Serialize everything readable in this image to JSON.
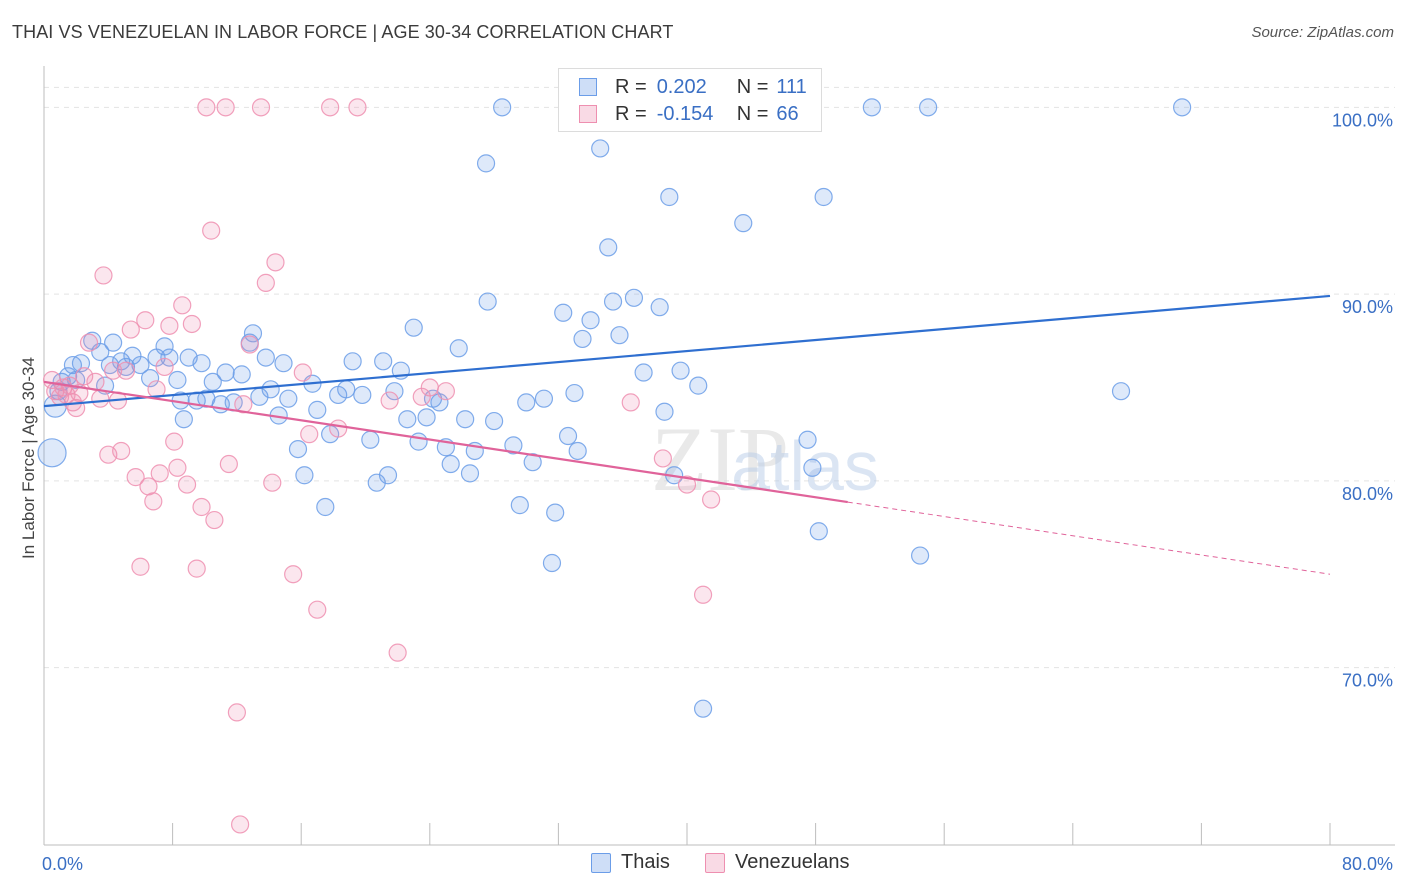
{
  "title": "THAI VS VENEZUELAN IN LABOR FORCE | AGE 30-34 CORRELATION CHART",
  "source": "Source: ZipAtlas.com",
  "legend": {
    "r_label": "R =",
    "n_label": "N =",
    "rows": [
      {
        "r": "0.202",
        "n": "111",
        "color": "#6b9de8"
      },
      {
        "r": "-0.154",
        "n": "66",
        "color": "#ee8fb0"
      }
    ]
  },
  "bottom_legend": [
    {
      "label": "Thais",
      "color": "#6b9de8"
    },
    {
      "label": "Venezuelans",
      "color": "#ee8fb0"
    }
  ],
  "chart_data": {
    "type": "scatter",
    "title": "THAI VS VENEZUELAN IN LABOR FORCE | AGE 30-34 CORRELATION CHART",
    "xlabel": "",
    "ylabel": "In Labor Force | Age 30-34",
    "xlim": [
      0,
      80
    ],
    "ylim": [
      60.5,
      102
    ],
    "x_tick_labels": [
      "0.0%",
      "80.0%"
    ],
    "y_ticks": [
      70,
      80,
      90,
      100
    ],
    "y_tick_labels": [
      "70.0%",
      "80.0%",
      "90.0%",
      "100.0%"
    ],
    "watermark": "ZIPatlas",
    "series": [
      {
        "name": "Thais",
        "color": "#6b9de8",
        "trend": {
          "x0": 0,
          "y0": 84.0,
          "x1": 80,
          "y1": 89.9,
          "dashed_from": null
        },
        "points": [
          [
            0.5,
            81.5
          ],
          [
            0.7,
            84.0
          ],
          [
            0.9,
            84.8
          ],
          [
            1.1,
            85.3
          ],
          [
            1.5,
            85.6
          ],
          [
            1.8,
            86.2
          ],
          [
            2.0,
            85.4
          ],
          [
            2.3,
            86.3
          ],
          [
            3.0,
            87.5
          ],
          [
            3.5,
            86.9
          ],
          [
            3.8,
            85.1
          ],
          [
            4.1,
            86.2
          ],
          [
            4.3,
            87.4
          ],
          [
            4.8,
            86.4
          ],
          [
            5.1,
            86.1
          ],
          [
            5.5,
            86.7
          ],
          [
            6.0,
            86.2
          ],
          [
            6.6,
            85.5
          ],
          [
            7.0,
            86.6
          ],
          [
            7.5,
            87.2
          ],
          [
            7.8,
            86.6
          ],
          [
            8.3,
            85.4
          ],
          [
            8.5,
            84.3
          ],
          [
            8.7,
            83.3
          ],
          [
            9.0,
            86.6
          ],
          [
            9.5,
            84.3
          ],
          [
            9.8,
            86.3
          ],
          [
            10.1,
            84.4
          ],
          [
            10.5,
            85.3
          ],
          [
            11.0,
            84.1
          ],
          [
            11.3,
            85.8
          ],
          [
            11.8,
            84.2
          ],
          [
            12.3,
            85.7
          ],
          [
            12.8,
            87.4
          ],
          [
            13.0,
            87.9
          ],
          [
            13.4,
            84.5
          ],
          [
            13.8,
            86.6
          ],
          [
            14.1,
            84.9
          ],
          [
            14.6,
            83.5
          ],
          [
            14.9,
            86.3
          ],
          [
            15.2,
            84.4
          ],
          [
            15.8,
            81.7
          ],
          [
            16.2,
            80.3
          ],
          [
            16.7,
            85.2
          ],
          [
            17.0,
            83.8
          ],
          [
            17.5,
            78.6
          ],
          [
            17.8,
            82.5
          ],
          [
            18.3,
            84.6
          ],
          [
            18.8,
            84.9
          ],
          [
            19.2,
            86.4
          ],
          [
            19.8,
            84.6
          ],
          [
            20.3,
            82.2
          ],
          [
            20.7,
            79.9
          ],
          [
            21.1,
            86.4
          ],
          [
            21.4,
            80.3
          ],
          [
            21.8,
            84.8
          ],
          [
            22.2,
            85.9
          ],
          [
            22.6,
            83.3
          ],
          [
            23.0,
            88.2
          ],
          [
            23.3,
            82.1
          ],
          [
            23.8,
            83.4
          ],
          [
            24.2,
            84.4
          ],
          [
            24.6,
            84.2
          ],
          [
            25.0,
            81.8
          ],
          [
            25.3,
            80.9
          ],
          [
            25.8,
            87.1
          ],
          [
            26.2,
            83.3
          ],
          [
            26.5,
            80.4
          ],
          [
            26.8,
            81.6
          ],
          [
            27.6,
            89.6
          ],
          [
            28.0,
            83.2
          ],
          [
            28.5,
            100.0
          ],
          [
            27.5,
            97.0
          ],
          [
            29.2,
            81.9
          ],
          [
            29.6,
            78.7
          ],
          [
            30.0,
            84.2
          ],
          [
            30.4,
            81.0
          ],
          [
            31.1,
            84.4
          ],
          [
            31.6,
            75.6
          ],
          [
            31.8,
            78.3
          ],
          [
            32.3,
            89.0
          ],
          [
            32.6,
            82.4
          ],
          [
            33.0,
            84.7
          ],
          [
            33.2,
            81.6
          ],
          [
            33.5,
            87.6
          ],
          [
            34.0,
            88.6
          ],
          [
            34.6,
            97.8
          ],
          [
            35.1,
            92.5
          ],
          [
            35.4,
            89.6
          ],
          [
            35.8,
            87.8
          ],
          [
            36.7,
            89.8
          ],
          [
            37.3,
            85.8
          ],
          [
            38.3,
            89.3
          ],
          [
            38.6,
            83.7
          ],
          [
            38.9,
            95.2
          ],
          [
            39.2,
            80.3
          ],
          [
            39.6,
            85.9
          ],
          [
            40.7,
            85.1
          ],
          [
            41.0,
            67.8
          ],
          [
            41.9,
            100.0
          ],
          [
            43.5,
            93.8
          ],
          [
            47.5,
            82.2
          ],
          [
            47.8,
            80.7
          ],
          [
            48.2,
            77.3
          ],
          [
            48.5,
            95.2
          ],
          [
            51.5,
            100.0
          ],
          [
            54.5,
            76.0
          ],
          [
            55.0,
            100.0
          ],
          [
            67.0,
            84.8
          ],
          [
            70.8,
            100.0
          ]
        ]
      },
      {
        "name": "Venezuelans",
        "color": "#ee8fb0",
        "trend": {
          "x0": 0,
          "y0": 85.3,
          "x1": 80,
          "y1": 75.0,
          "dashed_from": 50
        },
        "points": [
          [
            0.5,
            85.4
          ],
          [
            0.7,
            84.8
          ],
          [
            1.0,
            84.5
          ],
          [
            1.2,
            85.0
          ],
          [
            1.4,
            84.6
          ],
          [
            1.6,
            85.1
          ],
          [
            1.8,
            84.2
          ],
          [
            2.0,
            83.9
          ],
          [
            2.2,
            84.7
          ],
          [
            2.5,
            85.6
          ],
          [
            2.8,
            87.4
          ],
          [
            3.2,
            85.3
          ],
          [
            3.5,
            84.4
          ],
          [
            3.7,
            91.0
          ],
          [
            4.0,
            81.4
          ],
          [
            4.3,
            85.9
          ],
          [
            4.6,
            84.3
          ],
          [
            4.8,
            81.6
          ],
          [
            5.1,
            85.9
          ],
          [
            5.4,
            88.1
          ],
          [
            5.7,
            80.2
          ],
          [
            6.0,
            75.4
          ],
          [
            6.3,
            88.6
          ],
          [
            6.5,
            79.7
          ],
          [
            6.8,
            78.9
          ],
          [
            7.0,
            84.9
          ],
          [
            7.2,
            80.4
          ],
          [
            7.5,
            86.1
          ],
          [
            7.8,
            88.3
          ],
          [
            8.1,
            82.1
          ],
          [
            8.3,
            80.7
          ],
          [
            8.6,
            89.4
          ],
          [
            8.9,
            79.8
          ],
          [
            9.2,
            88.4
          ],
          [
            9.5,
            75.3
          ],
          [
            9.8,
            78.6
          ],
          [
            10.1,
            100.0
          ],
          [
            10.4,
            93.4
          ],
          [
            10.6,
            77.9
          ],
          [
            11.3,
            100.0
          ],
          [
            11.5,
            80.9
          ],
          [
            12.0,
            67.6
          ],
          [
            12.2,
            61.6
          ],
          [
            12.4,
            84.1
          ],
          [
            12.8,
            87.3
          ],
          [
            13.5,
            100.0
          ],
          [
            13.8,
            90.6
          ],
          [
            14.2,
            79.9
          ],
          [
            14.4,
            91.7
          ],
          [
            15.5,
            75.0
          ],
          [
            16.1,
            85.8
          ],
          [
            16.5,
            82.5
          ],
          [
            17.0,
            73.1
          ],
          [
            17.8,
            100.0
          ],
          [
            18.3,
            82.8
          ],
          [
            19.5,
            100.0
          ],
          [
            21.5,
            84.3
          ],
          [
            22.0,
            70.8
          ],
          [
            23.5,
            84.5
          ],
          [
            24.0,
            85.0
          ],
          [
            25.0,
            84.8
          ],
          [
            36.5,
            84.2
          ],
          [
            38.5,
            81.2
          ],
          [
            40.0,
            79.8
          ],
          [
            41.0,
            73.9
          ],
          [
            41.5,
            79.0
          ]
        ]
      }
    ]
  }
}
